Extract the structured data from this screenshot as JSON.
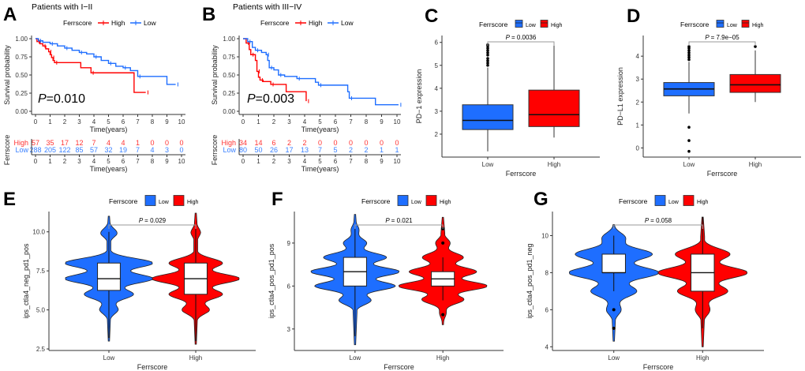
{
  "colors": {
    "high": "#FF0000",
    "low": "#1E6EFF",
    "risk_high": "#FF3333",
    "risk_low": "#3C82FF",
    "axis": "#333333",
    "bracket": "#999999"
  },
  "chart_data": [
    {
      "panel": "A",
      "type": "line",
      "subtype": "kaplan-meier",
      "title": "Patients with I−II",
      "legend": {
        "title": "Ferrscore",
        "entries": [
          "High",
          "Low"
        ],
        "placement": "top"
      },
      "xlabel": "Time(years)",
      "ylabel": "Survival probability",
      "xlim": [
        0,
        10
      ],
      "ylim": [
        0,
        1
      ],
      "xticks": [
        "0",
        "1",
        "2",
        "3",
        "4",
        "5",
        "6",
        "7",
        "8",
        "9",
        "10"
      ],
      "yticks": [
        "0.00",
        "0.25",
        "0.50",
        "0.75",
        "1.00"
      ],
      "pvalue_label": "=0.010",
      "series": [
        {
          "name": "High",
          "steps": [
            [
              0,
              1.0
            ],
            [
              0.1,
              0.96
            ],
            [
              0.3,
              0.93
            ],
            [
              0.5,
              0.9
            ],
            [
              0.7,
              0.86
            ],
            [
              0.9,
              0.82
            ],
            [
              1.0,
              0.78
            ],
            [
              1.1,
              0.74
            ],
            [
              1.2,
              0.7
            ],
            [
              1.3,
              0.67
            ],
            [
              3.1,
              0.6
            ],
            [
              3.8,
              0.53
            ],
            [
              6.75,
              0.26
            ],
            [
              7.55,
              0.26
            ]
          ]
        },
        {
          "name": "Low",
          "steps": [
            [
              0,
              1.0
            ],
            [
              0.2,
              0.97
            ],
            [
              0.5,
              0.95
            ],
            [
              1.0,
              0.93
            ],
            [
              1.5,
              0.9
            ],
            [
              2.0,
              0.87
            ],
            [
              2.5,
              0.84
            ],
            [
              3.0,
              0.81
            ],
            [
              3.5,
              0.79
            ],
            [
              4.0,
              0.75
            ],
            [
              4.5,
              0.7
            ],
            [
              5.0,
              0.66
            ],
            [
              5.5,
              0.62
            ],
            [
              6.0,
              0.6
            ],
            [
              6.5,
              0.56
            ],
            [
              7.0,
              0.48
            ],
            [
              9.0,
              0.37
            ],
            [
              9.6,
              0.37
            ]
          ]
        }
      ],
      "risk_table": {
        "ylabel": "Ferrscore",
        "xlabel": "Time(years)",
        "rows": [
          {
            "name": "High",
            "values": [
              "57",
              "35",
              "17",
              "12",
              "7",
              "4",
              "4",
              "1",
              "0",
              "0",
              "0"
            ]
          },
          {
            "name": "Low",
            "values": [
              "288",
              "205",
              "122",
              "85",
              "57",
              "32",
              "19",
              "7",
              "4",
              "3",
              "0"
            ]
          }
        ]
      }
    },
    {
      "panel": "B",
      "type": "line",
      "subtype": "kaplan-meier",
      "title": "Patients with III−IV",
      "legend": {
        "title": "Ferrscore",
        "entries": [
          "High",
          "Low"
        ],
        "placement": "top"
      },
      "xlabel": "Time(years)",
      "ylabel": "Survival probability",
      "xlim": [
        0,
        10
      ],
      "ylim": [
        0,
        1
      ],
      "xticks": [
        "0",
        "1",
        "2",
        "3",
        "4",
        "5",
        "6",
        "7",
        "8",
        "9",
        "10"
      ],
      "yticks": [
        "0.00",
        "0.25",
        "0.50",
        "0.75",
        "1.00"
      ],
      "pvalue_label": "=0.003",
      "series": [
        {
          "name": "High",
          "steps": [
            [
              0,
              1.0
            ],
            [
              0.2,
              0.94
            ],
            [
              0.4,
              0.85
            ],
            [
              0.5,
              0.78
            ],
            [
              0.8,
              0.7
            ],
            [
              0.9,
              0.55
            ],
            [
              1.0,
              0.47
            ],
            [
              1.1,
              0.43
            ],
            [
              1.3,
              0.41
            ],
            [
              1.8,
              0.37
            ],
            [
              2.8,
              0.27
            ],
            [
              4.1,
              0.14
            ]
          ]
        },
        {
          "name": "Low",
          "steps": [
            [
              0,
              1.0
            ],
            [
              0.3,
              0.96
            ],
            [
              0.6,
              0.88
            ],
            [
              0.8,
              0.84
            ],
            [
              1.2,
              0.81
            ],
            [
              1.5,
              0.78
            ],
            [
              1.6,
              0.7
            ],
            [
              1.7,
              0.6
            ],
            [
              2.0,
              0.57
            ],
            [
              2.3,
              0.5
            ],
            [
              2.7,
              0.48
            ],
            [
              3.5,
              0.45
            ],
            [
              4.7,
              0.4
            ],
            [
              4.9,
              0.36
            ],
            [
              6.8,
              0.27
            ],
            [
              6.9,
              0.18
            ],
            [
              8.6,
              0.09
            ],
            [
              10.1,
              0.09
            ]
          ]
        }
      ],
      "risk_table": {
        "ylabel": "Ferrscore",
        "xlabel": "Time(years)",
        "rows": [
          {
            "name": "High",
            "values": [
              "34",
              "14",
              "6",
              "2",
              "2",
              "0",
              "0",
              "0",
              "0",
              "0",
              "0"
            ]
          },
          {
            "name": "Low",
            "values": [
              "80",
              "50",
              "26",
              "17",
              "13",
              "7",
              "5",
              "2",
              "2",
              "1",
              "1"
            ]
          }
        ]
      }
    },
    {
      "panel": "C",
      "type": "box",
      "legend": {
        "title": "Ferrscore",
        "entries": [
          "Low",
          "High"
        ],
        "placement": "top"
      },
      "xlabel": "Ferrscore",
      "ylabel": "PD−1 expression",
      "categories": [
        "Low",
        "High"
      ],
      "ylim": [
        1.0,
        6.3
      ],
      "yticks": [
        2,
        3,
        4,
        5,
        6
      ],
      "pvalue_label": "= 0.0036",
      "boxes": [
        {
          "name": "Low",
          "min": 1.25,
          "q1": 2.2,
          "median": 2.6,
          "q3": 3.28,
          "max": 4.9,
          "outliers": [
            5.0,
            5.1,
            5.2,
            5.3,
            5.45,
            5.55,
            5.65,
            5.75,
            5.85,
            5.9
          ]
        },
        {
          "name": "High",
          "min": 1.85,
          "q1": 2.33,
          "median": 2.85,
          "q3": 3.92,
          "max": 5.9,
          "outliers": []
        }
      ]
    },
    {
      "panel": "D",
      "type": "box",
      "legend": {
        "title": "Ferrscore",
        "entries": [
          "Low",
          "High"
        ],
        "placement": "top"
      },
      "xlabel": "Ferrscore",
      "ylabel": "PD−L1 expression",
      "categories": [
        "Low",
        "High"
      ],
      "ylim": [
        -0.4,
        4.9
      ],
      "yticks": [
        0,
        1,
        2,
        3,
        4
      ],
      "pvalue_label": "= 7.9e−05",
      "boxes": [
        {
          "name": "Low",
          "min": 1.5,
          "q1": 2.27,
          "median": 2.57,
          "q3": 2.85,
          "max": 3.75,
          "outliers": [
            3.85,
            3.95,
            4.05,
            4.15,
            4.25,
            4.35,
            4.42,
            0.9,
            0.32,
            -0.15
          ]
        },
        {
          "name": "High",
          "min": 2.0,
          "q1": 2.42,
          "median": 2.75,
          "q3": 3.2,
          "max": 4.25,
          "outliers": [
            4.42
          ]
        }
      ]
    },
    {
      "panel": "E",
      "type": "violin",
      "legend": {
        "title": "Ferrscore",
        "entries": [
          "Low",
          "High"
        ],
        "placement": "top"
      },
      "xlabel": "Ferrscore",
      "ylabel": "ips_ctla4_neg_pd1_pos",
      "categories": [
        "Low",
        "High"
      ],
      "ylim": [
        2.4,
        11.3
      ],
      "yticks": [
        "2.5",
        "5.0",
        "7.5",
        "10.0"
      ],
      "ytick_values": [
        2.5,
        5.0,
        7.5,
        10.0
      ],
      "pvalue_label": "= 0.029",
      "violins": [
        {
          "name": "Low",
          "range": [
            3.0,
            11.0
          ],
          "density_peaks": [
            [
              8,
              1.0
            ],
            [
              7,
              1.0
            ],
            [
              10,
              0.2
            ],
            [
              6,
              0.55
            ],
            [
              5,
              0.2
            ]
          ],
          "box": {
            "min": 6.25,
            "q1": 6.25,
            "median": 7.0,
            "q3": 8.0,
            "max": 10.0,
            "whisker_low": 3.2,
            "whisker_high": 10.0
          }
        },
        {
          "name": "High",
          "range": [
            2.8,
            11.2
          ],
          "density_peaks": [
            [
              7,
              1.0
            ],
            [
              8,
              0.6
            ],
            [
              6,
              0.6
            ],
            [
              5,
              0.3
            ],
            [
              10,
              0.1
            ]
          ],
          "box": {
            "q1": 6.0,
            "median": 7.0,
            "q3": 8.0,
            "whisker_low": 3.0,
            "whisker_high": 10.3
          }
        }
      ]
    },
    {
      "panel": "F",
      "type": "violin",
      "legend": {
        "title": "Ferrscore",
        "entries": [
          "Low",
          "High"
        ],
        "placement": "top"
      },
      "xlabel": "Ferrscore",
      "ylabel": "ips_ctla4_pos_pd1_pos",
      "categories": [
        "Low",
        "High"
      ],
      "ylim": [
        1.5,
        11.2
      ],
      "yticks": [
        "3",
        "6",
        "9"
      ],
      "ytick_values": [
        3,
        6,
        9
      ],
      "pvalue_label": "= 0.021",
      "violins": [
        {
          "name": "Low",
          "range": [
            1.9,
            11.0
          ],
          "density_peaks": [
            [
              7,
              1.0
            ],
            [
              8,
              0.7
            ],
            [
              6,
              0.9
            ],
            [
              5,
              0.35
            ],
            [
              9,
              0.25
            ],
            [
              10,
              0.1
            ]
          ],
          "box": {
            "q1": 6.0,
            "median": 7.0,
            "q3": 8.0,
            "whisker_low": 2.5,
            "whisker_high": 10.0
          }
        },
        {
          "name": "High",
          "range": [
            3.3,
            10.8
          ],
          "density_peaks": [
            [
              6,
              1.0
            ],
            [
              7,
              0.75
            ],
            [
              8,
              0.45
            ],
            [
              5,
              0.5
            ],
            [
              9,
              0.15
            ],
            [
              4,
              0.15
            ]
          ],
          "box": {
            "q1": 6.0,
            "median": 6.5,
            "q3": 7.0,
            "whisker_low": 5.0,
            "whisker_high": 8.0
          },
          "outliers": [
            9.0,
            4.0,
            10.0
          ]
        }
      ]
    },
    {
      "panel": "G",
      "type": "violin",
      "legend": {
        "title": "Ferrscore",
        "entries": [
          "Low",
          "High"
        ],
        "placement": "top"
      },
      "xlabel": "Ferrscore",
      "ylabel": "ips_ctla4_pos_pd1_neg",
      "categories": [
        "Low",
        "High"
      ],
      "ylim": [
        3.8,
        11.3
      ],
      "yticks": [
        "4",
        "6",
        "8",
        "10"
      ],
      "ytick_values": [
        4,
        6,
        8,
        10
      ],
      "pvalue_label": "= 0.058",
      "violins": [
        {
          "name": "Low",
          "range": [
            4.3,
            10.6
          ],
          "density_peaks": [
            [
              8,
              1.0
            ],
            [
              9,
              0.85
            ],
            [
              7,
              0.5
            ],
            [
              10,
              0.35
            ],
            [
              6,
              0.15
            ]
          ],
          "box": {
            "q1": 8.0,
            "median": 8.0,
            "q3": 9.0,
            "whisker_low": 7.0,
            "whisker_high": 10.0
          },
          "outliers": [
            6.0,
            5.0
          ]
        },
        {
          "name": "High",
          "range": [
            4.0,
            11.0
          ],
          "density_peaks": [
            [
              8,
              1.0
            ],
            [
              9,
              0.6
            ],
            [
              7,
              0.55
            ],
            [
              6,
              0.15
            ]
          ],
          "box": {
            "q1": 7.0,
            "median": 8.0,
            "q3": 9.0,
            "whisker_low": 5.0,
            "whisker_high": 11.0
          }
        }
      ]
    }
  ]
}
